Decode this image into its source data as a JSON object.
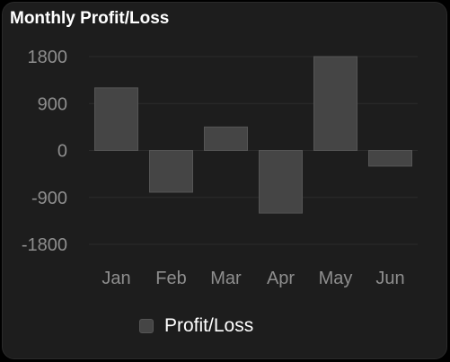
{
  "chart_data": {
    "type": "bar",
    "title": "Monthly Profit/Loss",
    "categories": [
      "Jan",
      "Feb",
      "Mar",
      "Apr",
      "May",
      "Jun"
    ],
    "series": [
      {
        "name": "Profit/Loss",
        "values": [
          1200,
          -800,
          450,
          -1200,
          1800,
          -300
        ]
      }
    ],
    "yticks": [
      1800,
      900,
      0,
      -900,
      -1800
    ],
    "ylim": [
      -1800,
      1800
    ],
    "grid": true,
    "legend": "bottom"
  },
  "colors": {
    "bar": "#454545",
    "bar_stroke": "#555555",
    "grid": "#2c2c2c",
    "tick": "#8e8e8e"
  }
}
